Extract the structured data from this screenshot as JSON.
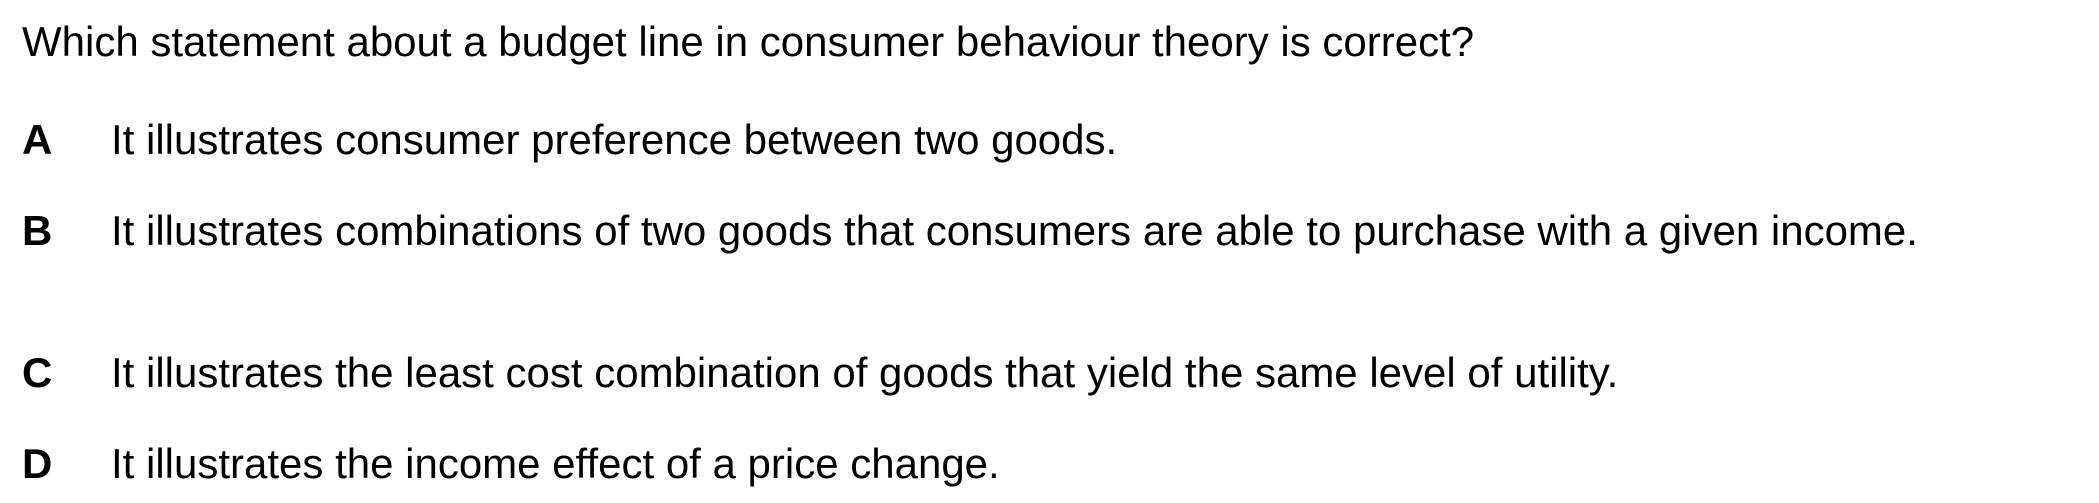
{
  "question": {
    "text": "Which statement about a budget line in consumer behaviour theory is correct?"
  },
  "options": [
    {
      "letter": "A",
      "text": "It illustrates consumer preference between two goods."
    },
    {
      "letter": "B",
      "text": "It illustrates combinations of two goods that consumers are able to purchase with a given income."
    },
    {
      "letter": "C",
      "text": "It illustrates the least cost combination of goods that yield the same level of utility."
    },
    {
      "letter": "D",
      "text": "It illustrates the income effect of a price change."
    }
  ]
}
